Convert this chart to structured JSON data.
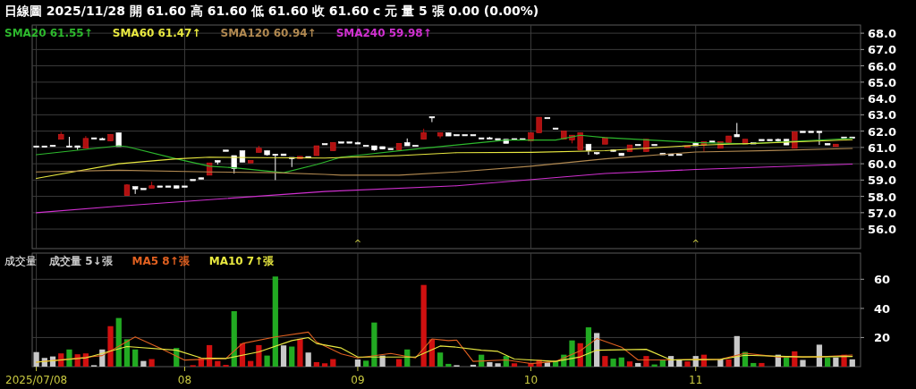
{
  "chart_data": [
    {
      "type": "candlestick",
      "title": "日線圖  2025/11/28  開 61.60  高 61.60  低 61.60  收 61.60 c 元  量 5 張  0.00 (0.00%)",
      "categories": [
        "2025/07/08",
        null,
        null,
        null,
        null,
        null,
        null,
        null,
        null,
        null,
        null,
        null,
        null,
        null,
        null,
        null,
        null,
        null,
        "08",
        null,
        null,
        null,
        null,
        null,
        null,
        null,
        null,
        null,
        null,
        null,
        null,
        null,
        null,
        null,
        null,
        null,
        null,
        null,
        null,
        "09",
        null,
        null,
        null,
        null,
        null,
        null,
        null,
        null,
        null,
        null,
        null,
        null,
        null,
        null,
        null,
        null,
        null,
        null,
        null,
        null,
        "10",
        null,
        null,
        null,
        null,
        null,
        null,
        null,
        null,
        null,
        null,
        null,
        null,
        null,
        null,
        null,
        null,
        null,
        null,
        null,
        "11",
        null,
        null,
        null,
        null,
        null,
        null,
        null,
        null,
        null,
        null,
        null,
        null,
        null,
        null,
        null,
        null,
        null,
        null,
        null
      ],
      "ohlc": [
        [
          61.05,
          61.05,
          61.05,
          61.05
        ],
        [
          61.05,
          61.05,
          61.05,
          61.05
        ],
        [
          61.1,
          61.1,
          61.05,
          61.05
        ],
        [
          61.5,
          61.95,
          61.5,
          61.8
        ],
        [
          61.05,
          61.65,
          61.05,
          61.05
        ],
        [
          61.1,
          61.1,
          60.85,
          61.0
        ],
        [
          60.95,
          61.7,
          60.95,
          61.55
        ],
        [
          61.55,
          61.55,
          61.55,
          61.55
        ],
        [
          61.5,
          61.6,
          61.5,
          61.5
        ],
        [
          61.4,
          61.8,
          61.4,
          61.8
        ],
        [
          61.9,
          61.9,
          61.05,
          61.05
        ],
        [
          58.05,
          58.75,
          58.05,
          58.7
        ],
        [
          58.6,
          58.6,
          58.15,
          58.45
        ],
        [
          58.45,
          58.45,
          58.45,
          58.45
        ],
        [
          58.5,
          58.9,
          58.5,
          58.65
        ],
        [
          58.6,
          58.6,
          58.6,
          58.6
        ],
        [
          58.6,
          58.6,
          58.6,
          58.6
        ],
        [
          58.65,
          58.65,
          58.5,
          58.5
        ],
        [
          58.6,
          58.6,
          58.6,
          58.6
        ],
        [
          59.0,
          59.0,
          59.0,
          59.0
        ],
        [
          59.1,
          59.15,
          59.05,
          59.1
        ],
        [
          59.3,
          60.05,
          59.3,
          60.05
        ],
        [
          60.2,
          60.2,
          59.95,
          60.1
        ],
        [
          60.8,
          60.8,
          60.8,
          60.8
        ],
        [
          60.5,
          60.5,
          59.4,
          59.7
        ],
        [
          60.8,
          60.8,
          60.1,
          60.1
        ],
        [
          60.05,
          60.2,
          60.05,
          60.2
        ],
        [
          60.7,
          61.1,
          60.7,
          60.95
        ],
        [
          60.8,
          60.8,
          60.5,
          60.55
        ],
        [
          60.55,
          60.6,
          59.0,
          60.55
        ],
        [
          60.6,
          60.6,
          60.5,
          60.5
        ],
        [
          60.35,
          60.35,
          59.8,
          60.35
        ],
        [
          60.3,
          60.45,
          60.3,
          60.45
        ],
        [
          60.4,
          60.4,
          60.4,
          60.4
        ],
        [
          60.5,
          61.1,
          60.5,
          61.1
        ],
        [
          61.2,
          61.2,
          61.2,
          61.2
        ],
        [
          60.8,
          61.3,
          60.8,
          61.3
        ],
        [
          61.3,
          61.3,
          61.3,
          61.3
        ],
        [
          61.3,
          61.3,
          61.3,
          61.3
        ],
        [
          61.25,
          61.35,
          61.25,
          61.25
        ],
        [
          61.1,
          61.1,
          61.1,
          61.1
        ],
        [
          61.1,
          61.1,
          60.8,
          60.85
        ],
        [
          61.05,
          61.05,
          60.9,
          60.9
        ],
        [
          60.9,
          60.9,
          60.9,
          60.9
        ],
        [
          60.85,
          61.25,
          60.85,
          61.25
        ],
        [
          61.3,
          61.55,
          61.1,
          61.1
        ],
        [
          61.1,
          61.1,
          61.1,
          61.1
        ],
        [
          61.5,
          62.15,
          61.5,
          61.9
        ],
        [
          62.85,
          62.85,
          62.55,
          62.85
        ],
        [
          61.7,
          61.9,
          61.55,
          61.9
        ],
        [
          61.9,
          61.9,
          61.7,
          61.7
        ],
        [
          61.75,
          61.75,
          61.75,
          61.75
        ],
        [
          61.75,
          61.75,
          61.75,
          61.75
        ],
        [
          61.75,
          61.75,
          61.75,
          61.75
        ],
        [
          61.55,
          61.55,
          61.55,
          61.55
        ],
        [
          61.55,
          61.65,
          61.55,
          61.55
        ],
        [
          61.5,
          61.5,
          61.5,
          61.5
        ],
        [
          61.5,
          61.5,
          61.25,
          61.25
        ],
        [
          61.5,
          61.5,
          61.5,
          61.5
        ],
        [
          61.5,
          61.5,
          61.5,
          61.5
        ],
        [
          61.4,
          61.9,
          61.4,
          61.9
        ],
        [
          61.9,
          62.85,
          61.9,
          62.85
        ],
        [
          62.8,
          62.8,
          62.8,
          62.8
        ],
        [
          62.15,
          62.15,
          62.15,
          62.15
        ],
        [
          61.5,
          62.0,
          61.5,
          62.0
        ],
        [
          61.45,
          61.75,
          61.25,
          61.75
        ],
        [
          60.85,
          61.9,
          60.85,
          61.9
        ],
        [
          61.2,
          61.2,
          60.55,
          60.8
        ],
        [
          60.65,
          60.7,
          60.55,
          60.65
        ],
        [
          61.2,
          61.6,
          61.2,
          61.6
        ],
        [
          60.8,
          60.85,
          60.75,
          60.8
        ],
        [
          60.65,
          60.65,
          60.5,
          60.5
        ],
        [
          60.75,
          61.15,
          60.75,
          61.15
        ],
        [
          61.15,
          61.15,
          61.15,
          61.15
        ],
        [
          60.75,
          61.5,
          60.75,
          61.5
        ],
        [
          61.15,
          61.15,
          61.15,
          61.15
        ],
        [
          60.65,
          60.65,
          60.55,
          60.55
        ],
        [
          60.6,
          60.6,
          60.5,
          60.5
        ],
        [
          60.55,
          60.55,
          60.55,
          60.55
        ],
        [
          61.0,
          61.1,
          61.0,
          61.1
        ],
        [
          61.25,
          61.25,
          61.1,
          61.1
        ],
        [
          61.15,
          61.35,
          60.75,
          61.35
        ],
        [
          61.35,
          61.35,
          61.35,
          61.35
        ],
        [
          60.95,
          61.35,
          60.95,
          61.35
        ],
        [
          61.3,
          61.7,
          61.3,
          61.7
        ],
        [
          61.8,
          62.5,
          61.65,
          61.65
        ],
        [
          61.2,
          61.5,
          61.2,
          61.5
        ],
        [
          61.25,
          61.25,
          61.25,
          61.25
        ],
        [
          61.45,
          61.45,
          61.45,
          61.45
        ],
        [
          61.45,
          61.45,
          61.45,
          61.45
        ],
        [
          61.45,
          61.55,
          61.35,
          61.45
        ],
        [
          61.5,
          61.5,
          61.15,
          61.15
        ],
        [
          60.95,
          61.95,
          60.95,
          61.95
        ],
        [
          61.95,
          61.95,
          61.95,
          61.95
        ],
        [
          61.95,
          61.95,
          61.95,
          61.95
        ],
        [
          61.95,
          61.95,
          61.15,
          61.95
        ],
        [
          61.25,
          61.25,
          61.15,
          61.15
        ],
        [
          61.05,
          61.2,
          61.05,
          61.2
        ],
        [
          61.6,
          61.6,
          61.6,
          61.6
        ],
        [
          61.6,
          61.6,
          61.6,
          61.6
        ]
      ],
      "colors": [
        "#ffffff",
        "#ffffff",
        "#ffffff",
        "#b01010",
        "#ffffff",
        "#ffffff",
        "#b01010",
        "#ffffff",
        "#ffffff",
        "#b01010",
        "#ffffff",
        "#b01010",
        "#ffffff",
        "#ffffff",
        "#b01010",
        "#ffffff",
        "#ffffff",
        "#ffffff",
        "#ffffff",
        "#ffffff",
        "#ffffff",
        "#b01010",
        "#ffffff",
        "#ffffff",
        "#ffffff",
        "#ffffff",
        "#b01010",
        "#b01010",
        "#ffffff",
        "#ffffff",
        "#ffffff",
        "#ffffff",
        "#b01010",
        "#ffffff",
        "#b01010",
        "#ffffff",
        "#b01010",
        "#ffffff",
        "#ffffff",
        "#ffffff",
        "#ffffff",
        "#ffffff",
        "#ffffff",
        "#ffffff",
        "#b01010",
        "#ffffff",
        "#ffffff",
        "#b01010",
        "#ffffff",
        "#b01010",
        "#ffffff",
        "#ffffff",
        "#ffffff",
        "#ffffff",
        "#ffffff",
        "#ffffff",
        "#ffffff",
        "#ffffff",
        "#ffffff",
        "#ffffff",
        "#b01010",
        "#b01010",
        "#ffffff",
        "#ffffff",
        "#b01010",
        "#b01010",
        "#b01010",
        "#ffffff",
        "#ffffff",
        "#b01010",
        "#ffffff",
        "#ffffff",
        "#b01010",
        "#ffffff",
        "#b01010",
        "#ffffff",
        "#ffffff",
        "#ffffff",
        "#ffffff",
        "#b01010",
        "#ffffff",
        "#b01010",
        "#ffffff",
        "#b01010",
        "#b01010",
        "#ffffff",
        "#b01010",
        "#ffffff",
        "#ffffff",
        "#ffffff",
        "#ffffff",
        "#ffffff",
        "#b01010",
        "#ffffff",
        "#ffffff",
        "#ffffff",
        "#ffffff",
        "#b01010",
        "#ffffff",
        "#ffffff"
      ],
      "series": [
        {
          "name": "SMA20 61.55↑",
          "type": "line",
          "color": "#2db82d",
          "values": [
            60.55,
            null,
            null,
            null,
            null,
            null,
            null,
            null,
            null,
            null,
            61.1,
            61.05,
            null,
            null,
            null,
            null,
            null,
            60.3,
            null,
            null,
            null,
            59.85,
            null,
            null,
            59.75,
            null,
            null,
            null,
            null,
            null,
            59.45,
            null,
            null,
            null,
            59.95,
            null,
            null,
            60.4,
            null,
            null,
            null,
            null,
            null,
            null,
            null,
            60.85,
            null,
            null,
            null,
            null,
            null,
            null,
            null,
            null,
            null,
            null,
            null,
            61.45,
            null,
            null,
            null,
            null,
            null,
            61.45,
            null,
            null,
            61.75,
            null,
            null,
            61.6,
            null,
            null,
            null,
            null,
            null,
            null,
            null,
            null,
            null,
            null,
            61.3,
            null,
            null,
            null,
            null,
            null,
            61.22,
            null,
            null,
            null,
            null,
            null,
            null,
            null,
            null,
            null,
            null,
            null,
            null,
            61.55
          ]
        },
        {
          "name": "SMA60 61.47↑",
          "type": "line",
          "color": "#e8e840",
          "values": [
            59.1,
            null,
            null,
            null,
            null,
            null,
            null,
            null,
            null,
            null,
            60.0,
            null,
            null,
            null,
            null,
            null,
            null,
            60.3,
            null,
            null,
            null,
            60.4,
            null,
            null,
            null,
            null,
            null,
            null,
            null,
            null,
            null,
            null,
            null,
            null,
            null,
            60.35,
            null,
            null,
            null,
            null,
            null,
            null,
            null,
            null,
            60.5,
            null,
            null,
            null,
            null,
            null,
            null,
            60.68,
            null,
            null,
            null,
            null,
            null,
            null,
            null,
            null,
            60.7,
            null,
            null,
            null,
            null,
            null,
            null,
            null,
            null,
            60.8,
            null,
            null,
            null,
            null,
            null,
            null,
            null,
            null,
            null,
            null,
            61.13,
            null,
            null,
            null,
            null,
            null,
            null,
            null,
            null,
            61.28,
            null,
            null,
            null,
            null,
            null,
            null,
            null,
            null,
            null,
            61.47
          ]
        },
        {
          "name": "SMA120 60.94↑",
          "type": "line",
          "color": "#b08850",
          "values": [
            59.5,
            null,
            null,
            null,
            null,
            null,
            null,
            null,
            null,
            null,
            59.6,
            null,
            null,
            null,
            null,
            null,
            null,
            null,
            null,
            null,
            null,
            59.5,
            null,
            null,
            null,
            null,
            null,
            null,
            null,
            59.45,
            null,
            null,
            null,
            null,
            null,
            59.35,
            null,
            59.3,
            null,
            null,
            null,
            null,
            null,
            null,
            59.3,
            null,
            null,
            null,
            null,
            null,
            null,
            59.5,
            null,
            null,
            null,
            null,
            null,
            null,
            null,
            null,
            59.85,
            null,
            null,
            null,
            null,
            null,
            null,
            null,
            null,
            60.3,
            null,
            null,
            null,
            null,
            null,
            null,
            null,
            null,
            null,
            null,
            60.72,
            null,
            null,
            null,
            null,
            null,
            null,
            null,
            null,
            60.81,
            null,
            null,
            null,
            null,
            null,
            null,
            null,
            null,
            null,
            60.94
          ]
        },
        {
          "name": "SMA240 59.98↑",
          "type": "line",
          "color": "#d030d0",
          "values": [
            57.0,
            null,
            null,
            null,
            null,
            null,
            null,
            null,
            null,
            null,
            57.4,
            null,
            null,
            null,
            null,
            null,
            null,
            null,
            null,
            null,
            null,
            null,
            null,
            null,
            null,
            null,
            null,
            null,
            null,
            null,
            null,
            null,
            null,
            null,
            null,
            58.3,
            null,
            null,
            null,
            null,
            null,
            null,
            null,
            null,
            null,
            null,
            null,
            null,
            null,
            null,
            null,
            58.65,
            null,
            null,
            null,
            null,
            null,
            null,
            null,
            null,
            null,
            null,
            null,
            null,
            null,
            null,
            null,
            null,
            null,
            59.4,
            null,
            null,
            null,
            null,
            null,
            null,
            null,
            null,
            null,
            null,
            59.65,
            null,
            null,
            null,
            null,
            null,
            null,
            null,
            null,
            null,
            null,
            null,
            null,
            null,
            null,
            null,
            null,
            null,
            null,
            59.98
          ]
        }
      ],
      "ylim": [
        54.8,
        68.5
      ],
      "yticks": [
        {
          "value": 56,
          "label": "56.0"
        },
        {
          "value": 57,
          "label": "57.0"
        },
        {
          "value": 58,
          "label": "58.0"
        },
        {
          "value": 59,
          "label": "59.0"
        },
        {
          "value": 60,
          "label": "60.0"
        },
        {
          "value": 61,
          "label": "61.0"
        },
        {
          "value": 62,
          "label": "62.0"
        },
        {
          "value": 63,
          "label": "63.0"
        },
        {
          "value": 64,
          "label": "64.0"
        },
        {
          "value": 65,
          "label": "65.0"
        },
        {
          "value": 66,
          "label": "66.0"
        },
        {
          "value": 67,
          "label": "67.0"
        },
        {
          "value": 68,
          "label": "68.0"
        }
      ],
      "tick_labels": "y",
      "grid": true,
      "legend": "top left",
      "annotations": [
        "^",
        "^"
      ]
    },
    {
      "type": "bar",
      "title": "成交量",
      "categories": [
        "2025/07/08",
        null,
        null,
        null,
        null,
        null,
        null,
        null,
        null,
        null,
        null,
        null,
        null,
        null,
        null,
        null,
        null,
        null,
        "08",
        null,
        null,
        null,
        null,
        null,
        null,
        null,
        null,
        null,
        null,
        null,
        null,
        null,
        null,
        null,
        null,
        null,
        null,
        null,
        null,
        "09",
        null,
        null,
        null,
        null,
        null,
        null,
        null,
        null,
        null,
        null,
        null,
        null,
        null,
        null,
        null,
        null,
        null,
        null,
        null,
        null,
        "10",
        null,
        null,
        null,
        null,
        null,
        null,
        null,
        null,
        null,
        null,
        null,
        null,
        null,
        null,
        null,
        null,
        null,
        null,
        null,
        "11",
        null,
        null,
        null,
        null,
        null,
        null,
        null,
        null,
        null,
        null,
        null,
        null,
        null,
        null,
        null,
        null,
        null,
        null,
        null
      ],
      "series": [
        {
          "name": "成交量 5↓張",
          "values": [
            10,
            6,
            7,
            9.1,
            11.8,
            8.5,
            9.1,
            1,
            11.8,
            27.8,
            33.4,
            18.8,
            11.8,
            3.9,
            5.2,
            null,
            null,
            12.8,
            null,
            1,
            6,
            14.8,
            3.9,
            1.2,
            38.1,
            15.9,
            3.9,
            14.8,
            7.6,
            61.9,
            14.6,
            13.8,
            19.2,
            9.7,
            3.1,
            2.3,
            5.2,
            null,
            null,
            4.9,
            4.1,
            30.3,
            7.6,
            null,
            5.2,
            11.8,
            null,
            56.1,
            18.8,
            9.7,
            1.9,
            1,
            null,
            1.3,
            8.2,
            3.1,
            2.3,
            7.3,
            2.3,
            null,
            2.5,
            4.6,
            2.9,
            4,
            8.2,
            18,
            16.1,
            27,
            23.1,
            7.3,
            5.5,
            6.3,
            3.6,
            2.5,
            7.3,
            1.5,
            4.4,
            7.3,
            5,
            3.6,
            7.3,
            8.2,
            null,
            5,
            5,
            21,
            10.1,
            2.5,
            2.5,
            null,
            8.2,
            7.3,
            10.5,
            4.6,
            null,
            15.1,
            6.1,
            6.3,
            8.2,
            5
          ],
          "colors": [
            "#c8c8c8",
            "#c8c8c8",
            "#c8c8c8",
            "#d01010",
            "#22aa22",
            "#d01010",
            "#d01010",
            "#c8c8c8",
            "#c8c8c8",
            "#d01010",
            "#22aa22",
            "#22aa22",
            "#22aa22",
            "#c8c8c8",
            "#d01010",
            null,
            null,
            "#22aa22",
            null,
            "#d01010",
            "#d01010",
            "#d01010",
            "#d01010",
            "#d01010",
            "#22aa22",
            "#d01010",
            "#d01010",
            "#d01010",
            "#22aa22",
            "#22aa22",
            "#c8c8c8",
            "#22aa22",
            "#d01010",
            "#c8c8c8",
            "#d01010",
            "#d01010",
            "#d01010",
            null,
            null,
            "#c8c8c8",
            "#22aa22",
            "#22aa22",
            "#c8c8c8",
            null,
            "#d01010",
            "#22aa22",
            null,
            "#d01010",
            "#d01010",
            "#22aa22",
            "#22aa22",
            "#c8c8c8",
            null,
            "#c8c8c8",
            "#22aa22",
            "#c8c8c8",
            "#c8c8c8",
            "#22aa22",
            "#d01010",
            null,
            "#d01010",
            "#d01010",
            "#c8c8c8",
            "#22aa22",
            "#22aa22",
            "#22aa22",
            "#d01010",
            "#22aa22",
            "#c8c8c8",
            "#d01010",
            "#22aa22",
            "#22aa22",
            "#d01010",
            "#c8c8c8",
            "#d01010",
            "#22aa22",
            "#22aa22",
            "#c8c8c8",
            "#c8c8c8",
            "#d01010",
            "#c8c8c8",
            "#d01010",
            null,
            "#c8c8c8",
            "#d01010",
            "#c8c8c8",
            "#22aa22",
            "#22aa22",
            "#d01010",
            null,
            "#c8c8c8",
            "#22aa22",
            "#d01010",
            "#c8c8c8",
            null,
            "#c8c8c8",
            "#22aa22",
            "#c8c8c8",
            "#d01010",
            "#c8c8c8"
          ]
        },
        {
          "name": "MA5 8↑張",
          "type": "line",
          "color": "#e06020",
          "values": [
            3.1,
            null,
            null,
            null,
            null,
            null,
            null,
            null,
            7.6,
            null,
            null,
            null,
            20.4,
            null,
            null,
            12.8,
            null,
            null,
            4.5,
            null,
            null,
            null,
            null,
            5.6,
            null,
            15.9,
            null,
            null,
            null,
            20.4,
            null,
            null,
            null,
            23.7,
            16.9,
            null,
            null,
            8.7,
            null,
            6.0,
            null,
            null,
            null,
            9.1,
            null,
            null,
            6.0,
            null,
            19.0,
            null,
            17.9,
            18.2,
            null,
            3.6,
            null,
            null,
            null,
            4.6,
            null,
            null,
            2.1,
            null,
            null,
            3.6,
            null,
            null,
            10.9,
            null,
            19.3,
            null,
            null,
            13.4,
            null,
            4.6,
            null,
            null,
            null,
            4.6,
            null,
            null,
            null,
            null,
            null,
            5.0,
            null,
            null,
            9.2,
            null,
            null,
            null,
            6.7,
            null,
            null,
            null,
            null,
            6.7,
            null,
            null,
            null,
            8
          ]
        },
        {
          "name": "MA10 7↑張",
          "type": "line",
          "color": "#e8e840",
          "values": [
            3.1,
            null,
            null,
            null,
            null,
            null,
            6.0,
            null,
            null,
            null,
            null,
            13.8,
            null,
            null,
            null,
            null,
            null,
            11.3,
            null,
            null,
            6.0,
            null,
            null,
            5.6,
            null,
            null,
            null,
            10.1,
            null,
            null,
            null,
            17.9,
            null,
            20.0,
            15.9,
            null,
            null,
            12.8,
            null,
            6.6,
            null,
            null,
            null,
            null,
            null,
            null,
            6.6,
            null,
            null,
            14.2,
            null,
            13.4,
            null,
            null,
            11.3,
            null,
            10.5,
            null,
            5.2,
            null,
            null,
            null,
            null,
            3.6,
            null,
            null,
            6.7,
            null,
            11.3,
            null,
            null,
            null,
            null,
            null,
            11.9,
            null,
            null,
            4.6,
            null,
            null,
            null,
            null,
            null,
            5.0,
            null,
            null,
            7.8,
            null,
            null,
            null,
            null,
            null,
            null,
            6.7,
            null,
            null,
            null,
            null,
            null,
            7
          ]
        }
      ],
      "ylim": [
        0,
        78
      ],
      "yticks": [
        20,
        40,
        60
      ],
      "grid": true,
      "legend": "top left"
    }
  ]
}
